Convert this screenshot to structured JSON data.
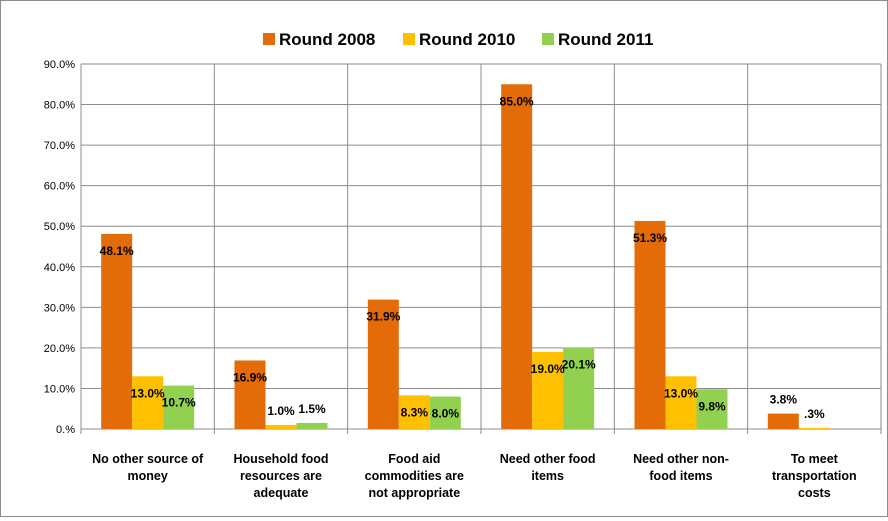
{
  "chart_data": {
    "type": "bar",
    "title": "",
    "xlabel": "",
    "ylabel": "",
    "ylim": [
      0,
      90
    ],
    "grid": true,
    "legend_position": "top-center",
    "y_tick_labels": [
      "0.%",
      "10.0%",
      "20.0%",
      "30.0%",
      "40.0%",
      "50.0%",
      "60.0%",
      "70.0%",
      "80.0%",
      "90.0%"
    ],
    "categories": [
      [
        "No other source of",
        "money"
      ],
      [
        "Household food",
        "resources are",
        "adequate"
      ],
      [
        "Food aid",
        "commodities are",
        "not appropriate"
      ],
      [
        "Need other food",
        "items"
      ],
      [
        "Need other non-",
        "food items"
      ],
      [
        "To meet",
        "transportation",
        "costs"
      ]
    ],
    "series": [
      {
        "name": "Round 2008",
        "color": "#E36C09",
        "values": [
          48.1,
          16.9,
          31.9,
          85.0,
          51.3,
          3.8
        ],
        "labels": [
          "48.1%",
          "16.9%",
          "31.9%",
          "85.0%",
          "51.3%",
          "3.8%"
        ]
      },
      {
        "name": "Round 2010",
        "color": "#FFC000",
        "values": [
          13.0,
          1.0,
          8.3,
          19.0,
          13.0,
          0.3
        ],
        "labels": [
          "13.0%",
          "1.0%",
          "8.3%",
          "19.0%",
          "13.0%",
          ".3%"
        ]
      },
      {
        "name": "Round 2011",
        "color": "#92D050",
        "values": [
          10.7,
          1.5,
          8.0,
          20.1,
          9.8,
          null
        ],
        "labels": [
          "10.7%",
          "1.5%",
          "8.0%",
          "20.1%",
          "9.8%",
          ""
        ]
      }
    ]
  }
}
